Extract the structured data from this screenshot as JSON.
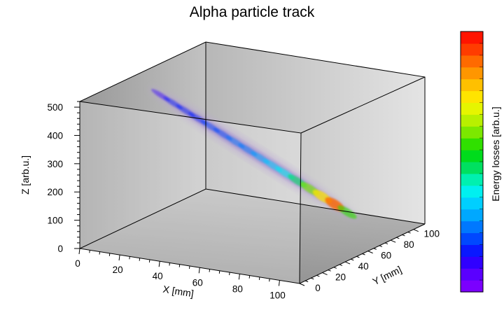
{
  "chart_data": {
    "type": "3d-scatter",
    "title": "Alpha particle track",
    "xlabel": "X [mm]",
    "ylabel": "Y [mm]",
    "zlabel": "Z [arb.u.]",
    "colorbar_label": "Energy losses [arb.u.]",
    "xlim": [
      0,
      110
    ],
    "ylim": [
      0,
      110
    ],
    "zlim": [
      0,
      520
    ],
    "x_ticks": [
      "0",
      "20",
      "40",
      "60",
      "80",
      "100"
    ],
    "y_ticks": [
      "0",
      "20",
      "40",
      "60",
      "80",
      "100"
    ],
    "z_ticks": [
      "0",
      "100",
      "200",
      "300",
      "400",
      "500"
    ],
    "track": {
      "start": {
        "x": 2,
        "y": 62,
        "z": 440
      },
      "end": {
        "x": 97,
        "y": 70,
        "z": 90
      },
      "energy_loss_profile": [
        0.1,
        0.12,
        0.14,
        0.16,
        0.18,
        0.2,
        0.22,
        0.25,
        0.28,
        0.32,
        0.38,
        0.48,
        0.62,
        0.78,
        0.92,
        0.55
      ]
    },
    "colorbar_colors": [
      "#7b00ff",
      "#5a00ff",
      "#3000ff",
      "#0a18ff",
      "#0048ff",
      "#0078ff",
      "#00a8ff",
      "#00cfff",
      "#00f0f0",
      "#00f0b0",
      "#00e060",
      "#00dc1c",
      "#30e000",
      "#7ce800",
      "#b8f000",
      "#e6f500",
      "#ffe400",
      "#ffc000",
      "#ff9600",
      "#ff6a00",
      "#ff3c00",
      "#ff1400"
    ]
  }
}
